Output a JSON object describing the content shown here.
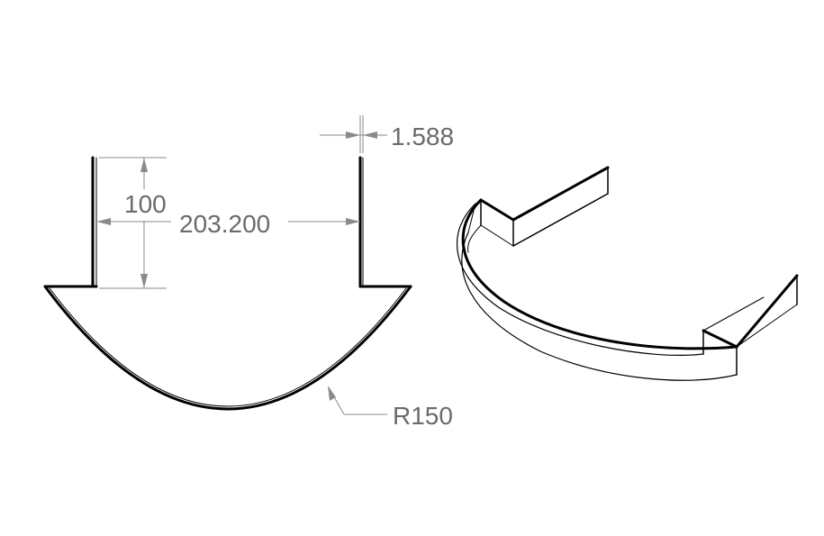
{
  "dimensions": {
    "thickness": "1.588",
    "height": "100",
    "width": "203.200",
    "radius": "R150"
  },
  "colors": {
    "part_line": "#000000",
    "dimension": "#8a8a8a",
    "dimension_text": "#6b6b6b",
    "background": "#ffffff"
  }
}
